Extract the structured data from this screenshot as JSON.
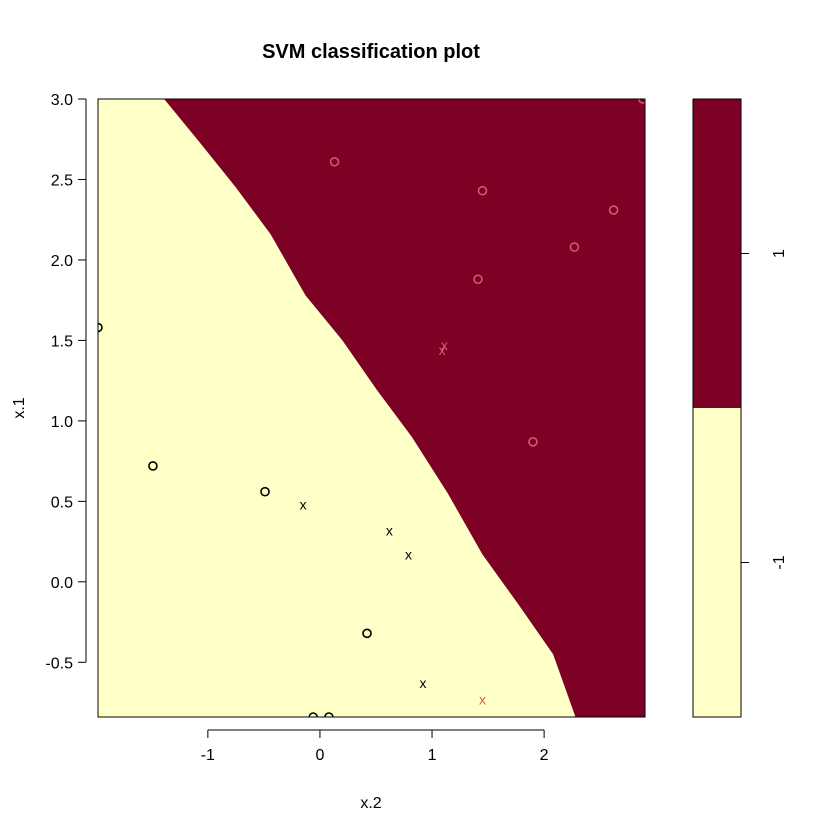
{
  "chart_data": {
    "type": "scatter",
    "title": "SVM classification plot",
    "xlabel": "x.2",
    "ylabel": "x.1",
    "xlim": [
      -1.98,
      2.9
    ],
    "ylim": [
      -0.84,
      3.0
    ],
    "xticks": [
      -1,
      0,
      1,
      2
    ],
    "yticks": [
      -0.5,
      0.0,
      0.5,
      1.0,
      1.5,
      2.0,
      2.5,
      3.0
    ],
    "grid": false,
    "colors": {
      "class_neg1_region": "#FFFFC8",
      "class_1_region": "#7D0025",
      "class_neg1_point": "#000000",
      "class_1_point": "#DF536B"
    },
    "decision_boundary": [
      {
        "x": -1.39,
        "y": 3.0
      },
      {
        "x": -1.06,
        "y": 2.72
      },
      {
        "x": -0.75,
        "y": 2.45
      },
      {
        "x": -0.44,
        "y": 2.16
      },
      {
        "x": -0.13,
        "y": 1.78
      },
      {
        "x": 0.2,
        "y": 1.5
      },
      {
        "x": 0.51,
        "y": 1.19
      },
      {
        "x": 0.82,
        "y": 0.9
      },
      {
        "x": 1.14,
        "y": 0.55
      },
      {
        "x": 1.45,
        "y": 0.17
      },
      {
        "x": 1.77,
        "y": -0.14
      },
      {
        "x": 2.08,
        "y": -0.45
      },
      {
        "x": 2.28,
        "y": -0.84
      }
    ],
    "legend": {
      "labels": [
        "1",
        "-1"
      ],
      "class_1_fraction": 0.5
    },
    "series": [
      {
        "class": "-1",
        "points": [
          {
            "x": -1.98,
            "y": 1.58,
            "marker": "o"
          },
          {
            "x": -1.49,
            "y": 0.72,
            "marker": "o"
          },
          {
            "x": -0.49,
            "y": 0.56,
            "marker": "o"
          },
          {
            "x": -0.15,
            "y": 0.48,
            "marker": "x"
          },
          {
            "x": 0.62,
            "y": 0.32,
            "marker": "x"
          },
          {
            "x": 0.79,
            "y": 0.17,
            "marker": "x"
          },
          {
            "x": 0.42,
            "y": -0.32,
            "marker": "o"
          },
          {
            "x": 0.92,
            "y": -0.63,
            "marker": "x"
          },
          {
            "x": -0.06,
            "y": -0.84,
            "marker": "o"
          },
          {
            "x": 0.08,
            "y": -0.84,
            "marker": "o"
          }
        ]
      },
      {
        "class": "1",
        "points": [
          {
            "x": 0.13,
            "y": 2.61,
            "marker": "o"
          },
          {
            "x": 1.45,
            "y": 2.43,
            "marker": "o"
          },
          {
            "x": 2.62,
            "y": 2.31,
            "marker": "o"
          },
          {
            "x": 2.27,
            "y": 2.08,
            "marker": "o"
          },
          {
            "x": 1.41,
            "y": 1.88,
            "marker": "o"
          },
          {
            "x": 1.11,
            "y": 1.47,
            "marker": "x"
          },
          {
            "x": 1.09,
            "y": 1.44,
            "marker": "x"
          },
          {
            "x": 1.9,
            "y": 0.87,
            "marker": "o"
          },
          {
            "x": 1.45,
            "y": -0.73,
            "marker": "x"
          },
          {
            "x": 2.88,
            "y": 3.0,
            "marker": "o"
          }
        ]
      }
    ]
  }
}
